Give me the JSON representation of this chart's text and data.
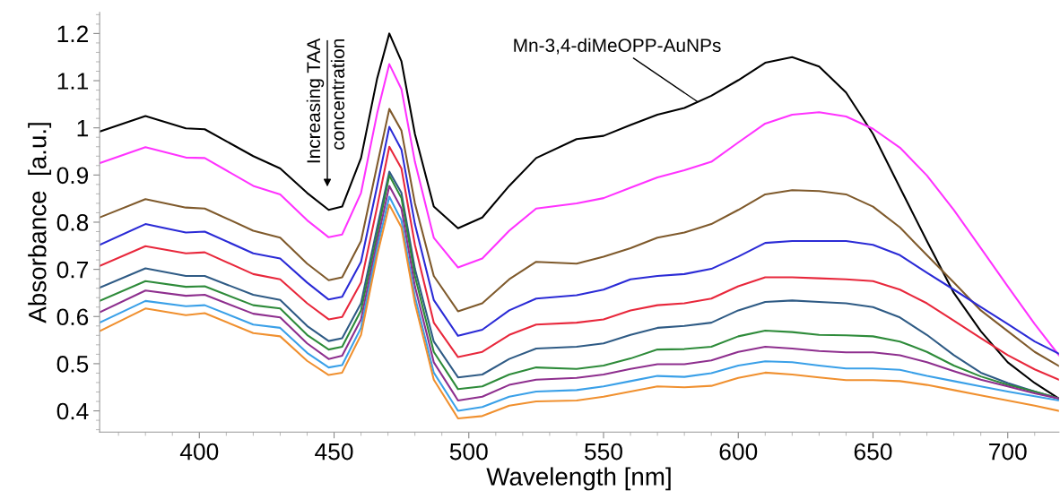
{
  "chart_data": {
    "type": "line",
    "xlabel": "Wavelength [nm]",
    "ylabel": "Absorbance  [a.u.]",
    "xlim": [
      363,
      719
    ],
    "ylim": [
      0.355,
      1.245
    ],
    "xticks": [
      400,
      450,
      500,
      550,
      600,
      650,
      700
    ],
    "yticks": [
      0.4,
      0.5,
      0.6,
      0.7,
      0.8,
      0.9,
      1,
      1.1,
      1.2
    ],
    "grid": false,
    "legend": false,
    "marker": "none",
    "line_style": "solid",
    "x": [
      363,
      380,
      395,
      402,
      420,
      430,
      440,
      448,
      453,
      460,
      466,
      470.5,
      475,
      480,
      487,
      496,
      505,
      515,
      525,
      540,
      550,
      560,
      570,
      580,
      590,
      600,
      610,
      620,
      630,
      640,
      650,
      660,
      670,
      680,
      690,
      700,
      710,
      719
    ],
    "annotations": [
      "Increasing TAA",
      "concentration",
      {
        "text": "Mn-3,4-diMeOPP-AuNPs",
        "x": 585,
        "y": 1.055
      }
    ],
    "series": [
      {
        "color": "#000000",
        "values": [
          0.992,
          1.025,
          0.999,
          0.997,
          0.94,
          0.914,
          0.862,
          0.826,
          0.833,
          0.936,
          1.105,
          1.2,
          1.141,
          0.987,
          0.833,
          0.787,
          0.81,
          0.877,
          0.936,
          0.976,
          0.983,
          1.006,
          1.028,
          1.042,
          1.068,
          1.101,
          1.138,
          1.15,
          1.13,
          1.075,
          0.987,
          0.873,
          0.76,
          0.65,
          0.569,
          0.503,
          0.459,
          0.426
        ]
      },
      {
        "color": "#ff33ff",
        "values": [
          0.925,
          0.959,
          0.937,
          0.936,
          0.877,
          0.859,
          0.804,
          0.768,
          0.774,
          0.862,
          1.031,
          1.135,
          1.082,
          0.928,
          0.767,
          0.704,
          0.723,
          0.782,
          0.829,
          0.84,
          0.851,
          0.873,
          0.895,
          0.91,
          0.928,
          0.969,
          1.009,
          1.028,
          1.033,
          1.024,
          0.998,
          0.958,
          0.899,
          0.826,
          0.745,
          0.664,
          0.584,
          0.518
        ]
      },
      {
        "color": "#7f5a2c",
        "values": [
          0.81,
          0.849,
          0.831,
          0.829,
          0.782,
          0.767,
          0.712,
          0.677,
          0.683,
          0.76,
          0.921,
          1.04,
          0.994,
          0.84,
          0.686,
          0.611,
          0.628,
          0.679,
          0.716,
          0.712,
          0.727,
          0.745,
          0.767,
          0.778,
          0.796,
          0.826,
          0.859,
          0.868,
          0.866,
          0.859,
          0.833,
          0.789,
          0.73,
          0.672,
          0.613,
          0.569,
          0.525,
          0.495
        ]
      },
      {
        "color": "#2b2bd6",
        "values": [
          0.752,
          0.796,
          0.778,
          0.78,
          0.734,
          0.723,
          0.672,
          0.636,
          0.642,
          0.716,
          0.877,
          1.002,
          0.954,
          0.796,
          0.635,
          0.559,
          0.572,
          0.613,
          0.638,
          0.645,
          0.657,
          0.679,
          0.686,
          0.69,
          0.701,
          0.727,
          0.756,
          0.76,
          0.76,
          0.76,
          0.752,
          0.73,
          0.693,
          0.657,
          0.62,
          0.584,
          0.547,
          0.521
        ]
      },
      {
        "color": "#e8283c",
        "values": [
          0.707,
          0.749,
          0.734,
          0.736,
          0.69,
          0.679,
          0.628,
          0.594,
          0.599,
          0.672,
          0.833,
          0.96,
          0.914,
          0.752,
          0.587,
          0.514,
          0.525,
          0.561,
          0.583,
          0.587,
          0.594,
          0.613,
          0.624,
          0.628,
          0.638,
          0.664,
          0.683,
          0.683,
          0.681,
          0.679,
          0.675,
          0.657,
          0.628,
          0.591,
          0.554,
          0.518,
          0.488,
          0.466
        ]
      },
      {
        "color": "#2f5b85",
        "values": [
          0.661,
          0.702,
          0.686,
          0.686,
          0.646,
          0.635,
          0.58,
          0.548,
          0.554,
          0.628,
          0.789,
          0.907,
          0.862,
          0.701,
          0.547,
          0.471,
          0.477,
          0.51,
          0.532,
          0.536,
          0.543,
          0.561,
          0.576,
          0.58,
          0.587,
          0.613,
          0.631,
          0.634,
          0.631,
          0.628,
          0.62,
          0.598,
          0.561,
          0.518,
          0.481,
          0.459,
          0.441,
          0.426
        ]
      },
      {
        "color": "#2e8b3a",
        "values": [
          0.633,
          0.675,
          0.663,
          0.664,
          0.624,
          0.617,
          0.561,
          0.53,
          0.536,
          0.613,
          0.774,
          0.899,
          0.851,
          0.686,
          0.525,
          0.446,
          0.452,
          0.477,
          0.492,
          0.489,
          0.496,
          0.511,
          0.53,
          0.531,
          0.536,
          0.558,
          0.57,
          0.567,
          0.561,
          0.56,
          0.558,
          0.547,
          0.525,
          0.496,
          0.473,
          0.455,
          0.441,
          0.426
        ]
      },
      {
        "color": "#8e2f8e",
        "values": [
          0.609,
          0.655,
          0.644,
          0.646,
          0.606,
          0.598,
          0.543,
          0.51,
          0.517,
          0.594,
          0.759,
          0.877,
          0.829,
          0.664,
          0.503,
          0.422,
          0.43,
          0.455,
          0.466,
          0.47,
          0.477,
          0.489,
          0.499,
          0.499,
          0.507,
          0.525,
          0.536,
          0.532,
          0.527,
          0.524,
          0.524,
          0.518,
          0.503,
          0.484,
          0.466,
          0.452,
          0.437,
          0.426
        ]
      },
      {
        "color": "#3aa0e8",
        "values": [
          0.587,
          0.633,
          0.622,
          0.624,
          0.583,
          0.576,
          0.523,
          0.492,
          0.497,
          0.576,
          0.745,
          0.854,
          0.804,
          0.642,
          0.481,
          0.4,
          0.408,
          0.43,
          0.441,
          0.444,
          0.452,
          0.463,
          0.474,
          0.472,
          0.48,
          0.496,
          0.505,
          0.503,
          0.496,
          0.49,
          0.49,
          0.487,
          0.474,
          0.463,
          0.452,
          0.441,
          0.431,
          0.422
        ]
      },
      {
        "color": "#f0902f",
        "values": [
          0.569,
          0.617,
          0.603,
          0.607,
          0.565,
          0.558,
          0.506,
          0.476,
          0.481,
          0.561,
          0.73,
          0.837,
          0.789,
          0.628,
          0.466,
          0.384,
          0.389,
          0.411,
          0.42,
          0.422,
          0.43,
          0.441,
          0.452,
          0.45,
          0.453,
          0.47,
          0.481,
          0.477,
          0.471,
          0.465,
          0.465,
          0.463,
          0.455,
          0.444,
          0.433,
          0.422,
          0.411,
          0.4
        ]
      }
    ]
  }
}
